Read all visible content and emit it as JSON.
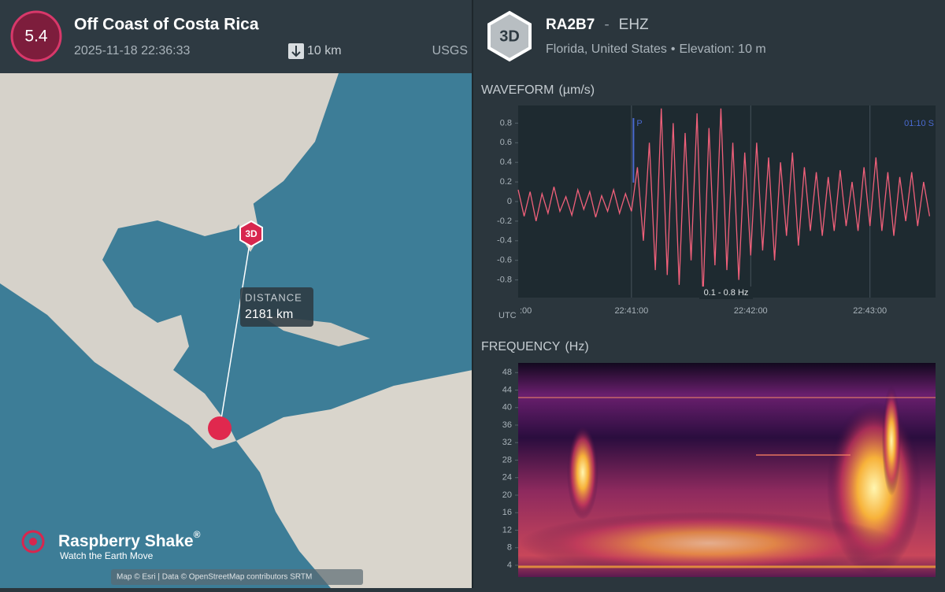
{
  "event": {
    "magnitude": "5.4",
    "title": "Off Coast of Costa Rica",
    "time": "2025-11-18 22:36:33",
    "depth": "10 km",
    "source": "USGS"
  },
  "station": {
    "badge": "3D",
    "code": "RA2B7",
    "separator": "-",
    "channel": "EHZ",
    "location": "Florida, United States",
    "bullet": "•",
    "elevation": "Elevation: 10 m"
  },
  "map": {
    "marker": "3D",
    "distance_label": "DISTANCE",
    "distance": "2181 km",
    "logo": "Raspberry Shake",
    "logo_mark": "®",
    "tagline": "Watch the Earth Move",
    "attribution": "Map © Esri | Data © OpenStreetMap contributors SRTM"
  },
  "waveform": {
    "type": "line",
    "title": "WAVEFORM",
    "unit": "(µm/s)",
    "x_unit": "UTC",
    "filter": "0.1 - 0.8 Hz",
    "color": "#f0607a",
    "x": [
      3,
      6,
      9,
      12,
      15,
      18,
      21,
      24,
      27,
      30,
      33,
      36,
      39,
      42,
      45,
      48,
      51,
      54,
      57,
      60,
      63,
      66,
      69,
      72,
      75,
      78,
      81,
      84,
      87,
      90,
      93,
      96,
      99,
      102,
      105,
      108,
      111,
      114,
      117,
      120,
      123,
      126,
      129,
      132,
      135,
      138,
      141,
      144,
      147,
      150,
      153,
      156,
      159,
      162,
      165,
      168,
      171,
      174,
      177,
      180,
      183,
      186,
      189,
      192,
      195,
      198,
      201,
      204,
      207,
      210
    ],
    "values": [
      0.12,
      -0.15,
      0.1,
      -0.2,
      0.08,
      -0.12,
      0.15,
      -0.1,
      0.05,
      -0.14,
      0.12,
      -0.08,
      0.1,
      -0.16,
      0.06,
      -0.1,
      0.12,
      -0.12,
      0.08,
      -0.1,
      0.35,
      -0.4,
      0.6,
      -0.7,
      0.95,
      -0.75,
      0.8,
      -0.85,
      0.7,
      -0.6,
      0.9,
      -0.98,
      0.75,
      -0.65,
      0.95,
      -0.7,
      0.6,
      -0.8,
      0.5,
      -0.55,
      0.6,
      -0.5,
      0.45,
      -0.6,
      0.4,
      -0.35,
      0.5,
      -0.45,
      0.35,
      -0.3,
      0.3,
      -0.35,
      0.25,
      -0.3,
      0.32,
      -0.25,
      0.2,
      -0.3,
      0.35,
      -0.25,
      0.45,
      -0.3,
      0.3,
      -0.35,
      0.25,
      -0.2,
      0.3,
      -0.25,
      0.2,
      -0.15
    ],
    "xlim": [
      3,
      213
    ],
    "ylim": [
      -0.98,
      0.98
    ],
    "xticks": [
      {
        "value": 0,
        "label": ":00"
      },
      {
        "value": 60,
        "label": "22:41:00"
      },
      {
        "value": 120,
        "label": "22:42:00"
      },
      {
        "value": 180,
        "label": "22:43:00"
      }
    ],
    "yticks": [
      0.8,
      0.6,
      0.4,
      0.2,
      0,
      -0.2,
      -0.4,
      -0.6,
      -0.8
    ],
    "markers": [
      {
        "label": "P",
        "x": 61
      }
    ],
    "end_label": "01:10  S"
  },
  "spectrogram": {
    "type": "heatmap",
    "title": "FREQUENCY",
    "unit": "(Hz)",
    "ylim": [
      1.3,
      50.2
    ],
    "yticks": [
      4,
      8,
      12,
      16,
      20,
      24,
      28,
      32,
      36,
      40,
      44,
      48
    ]
  }
}
